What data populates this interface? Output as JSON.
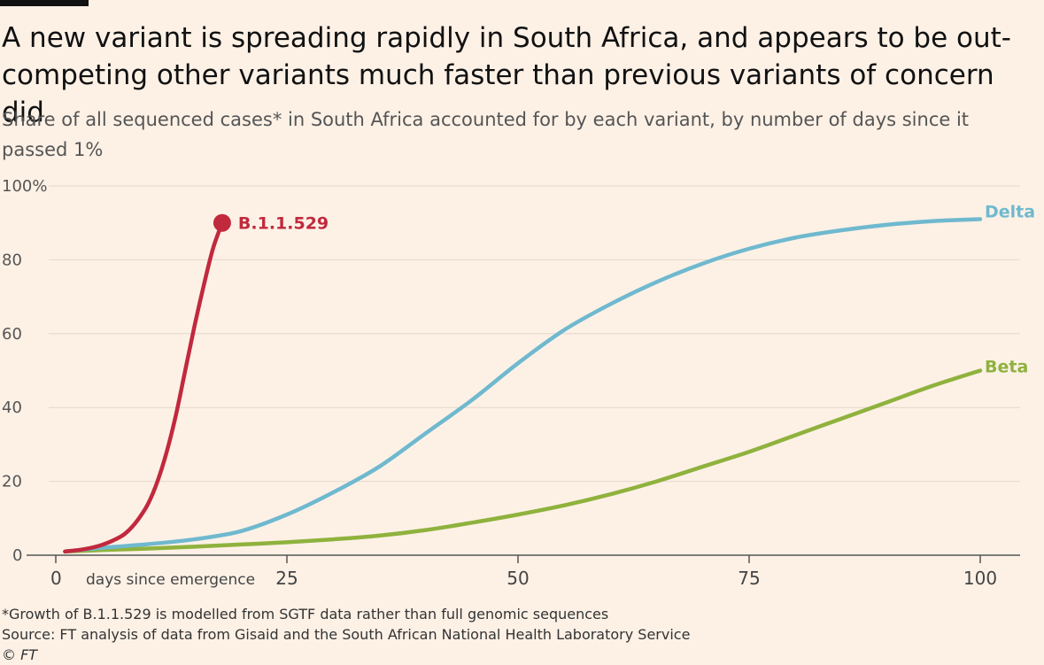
{
  "header": {
    "title": "A new variant is spreading rapidly in South Africa, and appears to be out-competing other variants much faster than previous variants of concern did",
    "subtitle": "Share of all sequenced cases* in South Africa accounted for by each variant, by number of days since it passed 1%"
  },
  "chart_data": {
    "type": "line",
    "xlabel": "days since emergence",
    "ylabel": "",
    "xlim": [
      0,
      100
    ],
    "ylim": [
      0,
      100
    ],
    "x_ticks": [
      {
        "value": 0,
        "label": "0"
      },
      {
        "value": 25,
        "label": "25"
      },
      {
        "value": 50,
        "label": "50"
      },
      {
        "value": 75,
        "label": "75"
      },
      {
        "value": 100,
        "label": "100"
      }
    ],
    "y_ticks": [
      {
        "value": 0,
        "label": "0"
      },
      {
        "value": 20,
        "label": "20"
      },
      {
        "value": 40,
        "label": "40"
      },
      {
        "value": 60,
        "label": "60"
      },
      {
        "value": 80,
        "label": "80"
      },
      {
        "value": 100,
        "label": "100%"
      }
    ],
    "grid": true,
    "series": [
      {
        "name": "B.1.1.529",
        "color": "#c1293c",
        "end_marker": true,
        "points": [
          [
            1,
            1
          ],
          [
            3,
            1.6
          ],
          [
            5,
            2.8
          ],
          [
            7,
            5
          ],
          [
            8,
            7
          ],
          [
            9,
            10
          ],
          [
            10,
            14
          ],
          [
            11,
            20
          ],
          [
            12,
            28
          ],
          [
            13,
            38
          ],
          [
            14,
            50
          ],
          [
            15,
            62
          ],
          [
            16,
            73
          ],
          [
            17,
            83
          ],
          [
            18,
            90
          ]
        ]
      },
      {
        "name": "Delta",
        "color": "#6fb9cf",
        "end_marker": false,
        "points": [
          [
            1,
            1
          ],
          [
            5,
            2
          ],
          [
            10,
            3
          ],
          [
            15,
            4.3
          ],
          [
            20,
            6.5
          ],
          [
            25,
            11
          ],
          [
            30,
            17
          ],
          [
            35,
            24
          ],
          [
            40,
            33
          ],
          [
            45,
            42
          ],
          [
            50,
            52
          ],
          [
            55,
            61
          ],
          [
            60,
            68
          ],
          [
            65,
            74
          ],
          [
            70,
            79
          ],
          [
            75,
            83
          ],
          [
            80,
            86
          ],
          [
            85,
            88
          ],
          [
            90,
            89.5
          ],
          [
            95,
            90.5
          ],
          [
            100,
            91
          ]
        ]
      },
      {
        "name": "Beta",
        "color": "#8fb23d",
        "end_marker": false,
        "points": [
          [
            1,
            1
          ],
          [
            5,
            1.4
          ],
          [
            10,
            1.8
          ],
          [
            15,
            2.3
          ],
          [
            20,
            2.9
          ],
          [
            25,
            3.5
          ],
          [
            30,
            4.3
          ],
          [
            35,
            5.3
          ],
          [
            40,
            6.8
          ],
          [
            45,
            8.8
          ],
          [
            50,
            11
          ],
          [
            55,
            13.5
          ],
          [
            60,
            16.5
          ],
          [
            65,
            20
          ],
          [
            70,
            24
          ],
          [
            75,
            28
          ],
          [
            80,
            32.5
          ],
          [
            85,
            37
          ],
          [
            90,
            41.5
          ],
          [
            95,
            46
          ],
          [
            100,
            50
          ]
        ]
      }
    ]
  },
  "footer": {
    "note": "*Growth of B.1.1.529 is modelled from SGTF data rather than full genomic sequences",
    "source": "Source: FT analysis of data from Gisaid and the South African National Health Laboratory Service",
    "copyright": "© FT"
  }
}
